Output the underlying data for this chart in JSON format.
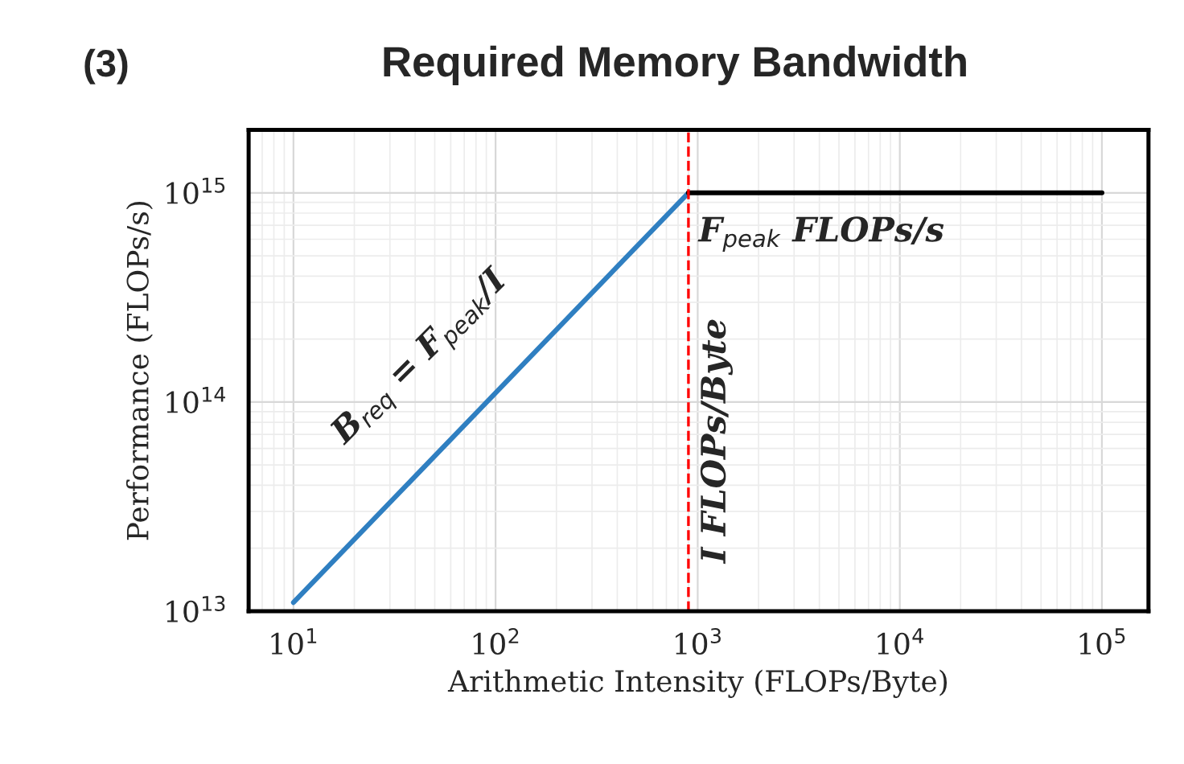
{
  "chart_data": {
    "type": "line",
    "title": "Required Memory Bandwidth",
    "xlabel": "Arithmetic Intensity (FLOPs/Byte)",
    "ylabel": "Performance (FLOPs/s)",
    "series": [
      {
        "color": "#2f7fc1",
        "x": [
          10,
          900
        ],
        "values": [
          11000000000000.0,
          1000000000000000.0
        ]
      },
      {
        "color": "#000000",
        "x": [
          900,
          100000
        ],
        "values": [
          1000000000000000.0,
          1000000000000000.0
        ]
      }
    ],
    "log": "xy",
    "xlim": [
      6,
      170000
    ],
    "ylim": [
      10000000000000.0,
      2000000000000000.0
    ],
    "xticks": [
      {
        "value": 10,
        "label": "10$^{1}$"
      },
      {
        "value": 100,
        "label": "10$^{2}$"
      },
      {
        "value": 1000,
        "label": "10$^{3}$"
      },
      {
        "value": 10000,
        "label": "10$^{4}$"
      },
      {
        "value": 100000,
        "label": "10$^{5}$"
      }
    ],
    "yticks": [
      {
        "value": 10000000000000.0,
        "label": "10$^{13}$"
      },
      {
        "value": 100000000000000.0,
        "label": "10$^{14}$"
      },
      {
        "value": 1000000000000000.0,
        "label": "10$^{15}$"
      }
    ],
    "grid": true,
    "marker": "none",
    "line_style": "solid",
    "ref_lines": [
      {
        "axis": "x",
        "value": 900,
        "color": "#ff0000",
        "line_style": "dashed"
      }
    ],
    "annotations": [
      "(3)",
      "B$_{req}$ = F$_{peak}$/I",
      "F$_{peak}$ FLOPs/s",
      "I FLOPs/Byte"
    ]
  }
}
